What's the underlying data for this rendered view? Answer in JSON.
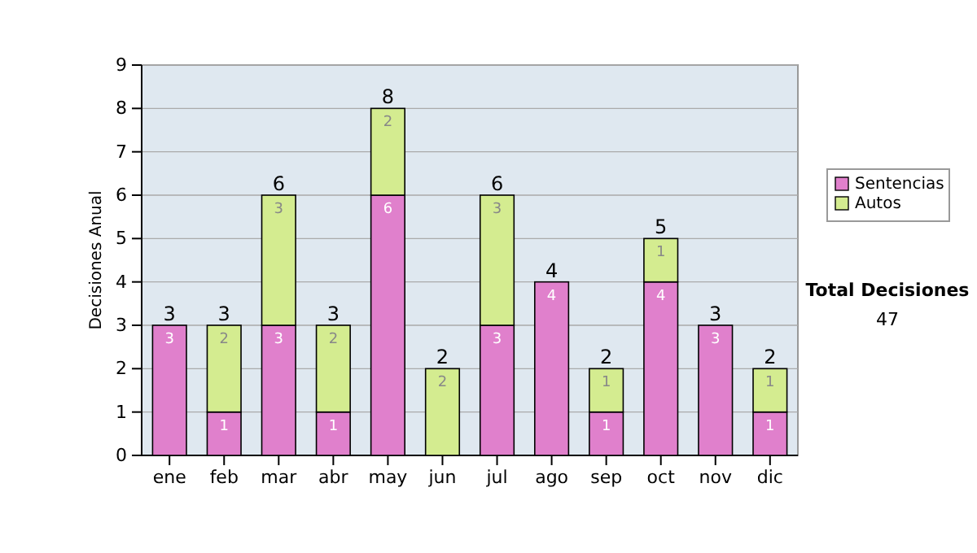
{
  "chart_data": {
    "type": "bar",
    "stacked": true,
    "ylabel": "Decisiones Anual",
    "categories": [
      "ene",
      "feb",
      "mar",
      "abr",
      "may",
      "jun",
      "jul",
      "ago",
      "sep",
      "oct",
      "nov",
      "dic"
    ],
    "series": [
      {
        "name": "Sentencias",
        "color": "#e080cc",
        "values": [
          3,
          1,
          3,
          1,
          6,
          0,
          3,
          4,
          1,
          4,
          3,
          1
        ],
        "value_labels": [
          "3",
          "1",
          "3",
          "1",
          "6",
          null,
          "3",
          "4",
          "1",
          "4",
          "3",
          "1"
        ]
      },
      {
        "name": "Autos",
        "color": "#d4ec90",
        "values": [
          0,
          2,
          3,
          2,
          2,
          2,
          3,
          0,
          1,
          1,
          0,
          1
        ],
        "value_labels": [
          null,
          "2",
          "3",
          "2",
          "2",
          "2",
          "3",
          null,
          "1",
          "1",
          null,
          "1"
        ]
      }
    ],
    "totals": [
      "3",
      "3",
      "6",
      "3",
      "8",
      "2",
      "6",
      "4",
      "2",
      "5",
      "3",
      "2"
    ],
    "ylim": [
      0,
      9
    ],
    "yticks": [
      0,
      1,
      2,
      3,
      4,
      5,
      6,
      7,
      8,
      9
    ],
    "grid": "y",
    "legend": "right",
    "annotations": [
      "Total Decisiones",
      "47"
    ]
  }
}
